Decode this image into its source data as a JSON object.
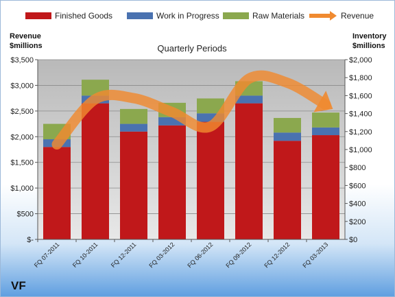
{
  "chart_data": {
    "type": "bar",
    "title": "Quarterly Periods",
    "company": "VF",
    "left_axis_label": [
      "Revenue",
      "$millions"
    ],
    "right_axis_label": [
      "Inventory",
      "$millions"
    ],
    "categories": [
      "FQ 07-2011",
      "FQ 10-2011",
      "FQ 12-2011",
      "FQ 03-2012",
      "FQ 06-2012",
      "FQ 09-2012",
      "FQ 12-2012",
      "FQ 03-2013"
    ],
    "series": [
      {
        "name": "Finished Goods",
        "type": "stacked-bar",
        "axis": "left",
        "color": "#C0181A",
        "values": [
          1800,
          2650,
          2100,
          2220,
          2290,
          2650,
          1920,
          2030
        ]
      },
      {
        "name": "Work in Progress",
        "type": "stacked-bar",
        "axis": "left",
        "color": "#4A72B0",
        "values": [
          150,
          150,
          150,
          160,
          165,
          150,
          160,
          150
        ]
      },
      {
        "name": "Raw Materials",
        "type": "stacked-bar",
        "axis": "left",
        "color": "#8BA84E",
        "values": [
          300,
          310,
          290,
          280,
          290,
          280,
          285,
          290
        ]
      },
      {
        "name": "Revenue",
        "type": "trend-arrow",
        "axis": "left",
        "color": "#F08A30",
        "values": [
          1850,
          2730,
          2750,
          2480,
          2200,
          3130,
          3050,
          2620
        ]
      }
    ],
    "left_ylim": [
      0,
      3500
    ],
    "left_ticks": [
      0,
      500,
      1000,
      1500,
      2000,
      2500,
      3000,
      3500
    ],
    "left_tick_labels": [
      "$-",
      "$500",
      "$1,000",
      "$1,500",
      "$2,000",
      "$2,500",
      "$3,000",
      "$3,500"
    ],
    "right_ylim": [
      0,
      2000
    ],
    "right_ticks": [
      0,
      200,
      400,
      600,
      800,
      1000,
      1200,
      1400,
      1600,
      1800,
      2000
    ],
    "right_tick_labels": [
      "$0",
      "$200",
      "$400",
      "$600",
      "$800",
      "$1,000",
      "$1,200",
      "$1,400",
      "$1,600",
      "$1,800",
      "$2,000"
    ],
    "grid": true,
    "legend_position": "top"
  }
}
